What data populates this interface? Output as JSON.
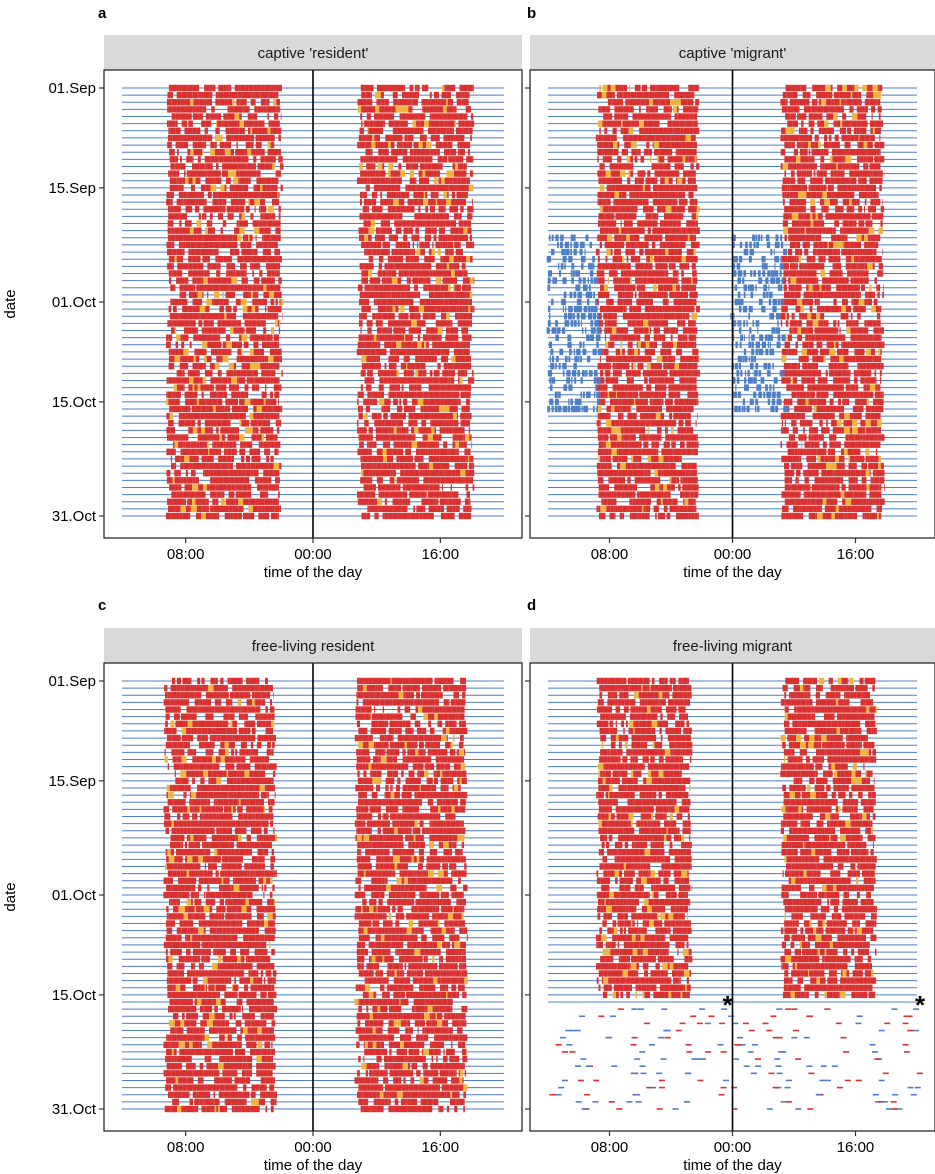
{
  "chart_data": [
    {
      "type": "heatmap",
      "panel_label": "a",
      "strip_title": "captive 'resident'",
      "xlabel": "time of the day",
      "ylabel": "date",
      "x_ticks": [
        "08:00",
        "00:00",
        "16:00"
      ],
      "y_ticks": [
        "01.Sep",
        "15.Sep",
        "01.Oct",
        "15.Oct",
        "31.Oct"
      ],
      "days": 61,
      "activity_colors": {
        "baseline": "#4e7ec4",
        "low": "#4e7ec4",
        "high": "#d93030",
        "peak": "#f0b43c"
      },
      "series": [
        {
          "name": "active period",
          "start_hour": 5.8,
          "end_hour": 20.0,
          "level": "high",
          "date_range": [
            "01.Sep",
            "31.Oct"
          ]
        }
      ]
    },
    {
      "type": "heatmap",
      "panel_label": "b",
      "strip_title": "captive 'migrant'",
      "xlabel": "time of the day",
      "ylabel": "date",
      "x_ticks": [
        "08:00",
        "00:00",
        "16:00"
      ],
      "y_ticks": [],
      "days": 61,
      "series": [
        {
          "name": "active period",
          "start_hour": 6.5,
          "end_hour": 19.5,
          "level": "high",
          "date_range": [
            "01.Sep",
            "31.Oct"
          ]
        },
        {
          "name": "nocturnal activity",
          "start_hour": 0.0,
          "end_hour": 6.5,
          "level": "low",
          "date_range": [
            "22.Sep",
            "16.Oct"
          ]
        }
      ]
    },
    {
      "type": "heatmap",
      "panel_label": "c",
      "strip_title": "free-living resident",
      "xlabel": "time of the day",
      "ylabel": "date",
      "x_ticks": [
        "08:00",
        "00:00",
        "16:00"
      ],
      "y_ticks": [
        "01.Sep",
        "15.Sep",
        "01.Oct",
        "15.Oct",
        "31.Oct"
      ],
      "days": 61,
      "series": [
        {
          "name": "active period",
          "start_hour": 5.5,
          "end_hour": 19.2,
          "level": "high",
          "date_range": [
            "01.Sep",
            "31.Oct"
          ]
        }
      ]
    },
    {
      "type": "heatmap",
      "panel_label": "d",
      "strip_title": "free-living migrant",
      "xlabel": "time of the day",
      "ylabel": "date",
      "x_ticks": [
        "08:00",
        "00:00",
        "16:00"
      ],
      "y_ticks": [],
      "days": 61,
      "annotation": "*",
      "series": [
        {
          "name": "active period",
          "start_hour": 6.5,
          "end_hour": 18.5,
          "level": "high",
          "date_range": [
            "01.Sep",
            "15.Oct"
          ]
        },
        {
          "name": "sparse records",
          "start_hour": 0.0,
          "end_hour": 24.0,
          "level": "low",
          "date_range": [
            "17.Oct",
            "31.Oct"
          ]
        }
      ]
    }
  ]
}
